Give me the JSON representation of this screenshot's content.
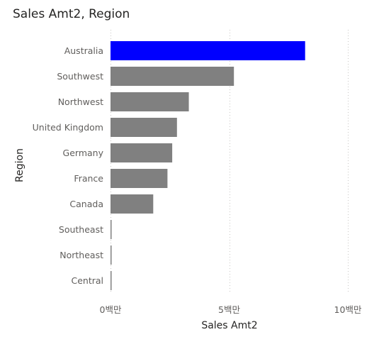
{
  "chart_data": {
    "type": "bar",
    "orientation": "horizontal",
    "title": "Sales Amt2, Region",
    "xlabel": "Sales Amt2",
    "ylabel": "Region",
    "categories": [
      "Australia",
      "Southwest",
      "Northwest",
      "United Kingdom",
      "Germany",
      "France",
      "Canada",
      "Southeast",
      "Northeast",
      "Central"
    ],
    "values": [
      8200000,
      5200000,
      3300000,
      2800000,
      2600000,
      2400000,
      1800000,
      20000,
      15000,
      10000
    ],
    "xlim": [
      0,
      10000000
    ],
    "xticks": [
      0,
      5000000,
      10000000
    ],
    "xtick_labels": [
      "0백만",
      "5백만",
      "10백만"
    ],
    "grid": true,
    "colors": {
      "highlight": "#0000ff",
      "default": "#808080"
    },
    "highlighted_category": "Australia"
  }
}
